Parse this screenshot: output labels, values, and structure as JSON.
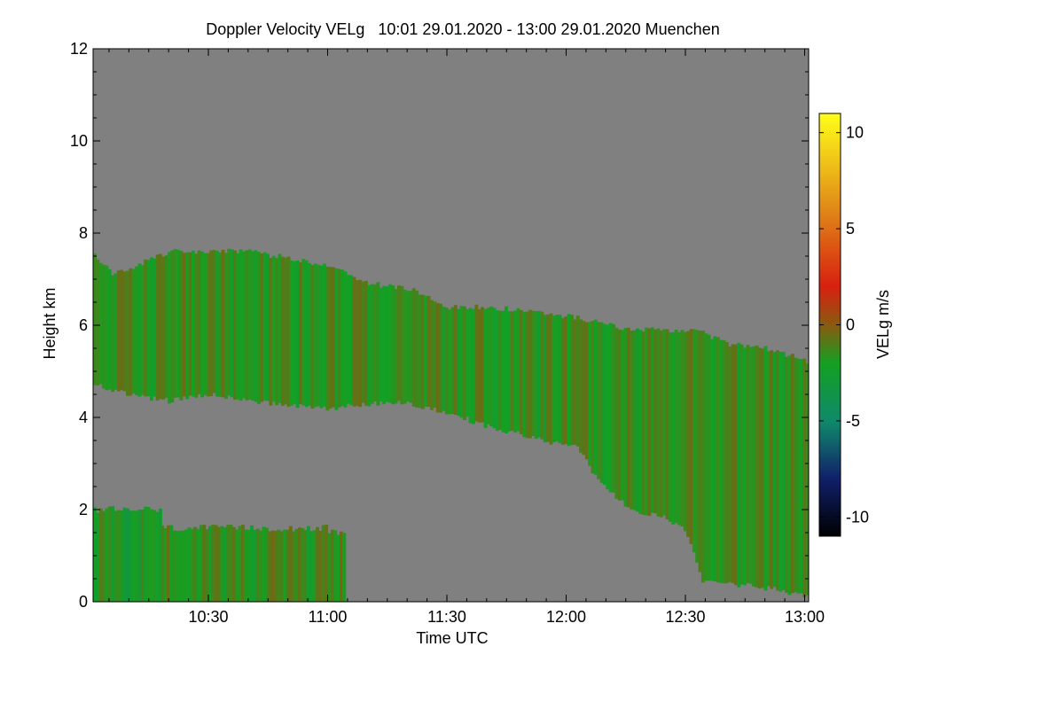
{
  "chart_data": {
    "type": "heatmap",
    "title": "Doppler Velocity VELg   10:01 29.01.2020 - 13:00 29.01.2020 Muenchen",
    "xlabel": "Time UTC",
    "ylabel": "Height km",
    "x_range_minutes": [
      601,
      781
    ],
    "x_ticks": [
      {
        "value": 630,
        "label": "10:30"
      },
      {
        "value": 660,
        "label": "11:00"
      },
      {
        "value": 690,
        "label": "11:30"
      },
      {
        "value": 720,
        "label": "12:00"
      },
      {
        "value": 750,
        "label": "12:30"
      },
      {
        "value": 780,
        "label": "13:00"
      }
    ],
    "y_range": [
      0,
      12
    ],
    "y_ticks": [
      {
        "value": 0,
        "label": "0"
      },
      {
        "value": 2,
        "label": "2"
      },
      {
        "value": 4,
        "label": "4"
      },
      {
        "value": 6,
        "label": "6"
      },
      {
        "value": 8,
        "label": "8"
      },
      {
        "value": 10,
        "label": "10"
      },
      {
        "value": 12,
        "label": "12"
      }
    ],
    "colorbar": {
      "label": "VELg m/s",
      "range": [
        -11,
        11
      ],
      "ticks": [
        {
          "value": 10,
          "label": "10"
        },
        {
          "value": 5,
          "label": "5"
        },
        {
          "value": 0,
          "label": "0"
        },
        {
          "value": -5,
          "label": "-5"
        },
        {
          "value": -10,
          "label": "-10"
        }
      ],
      "stops": [
        {
          "value": -11,
          "color": "#000000"
        },
        {
          "value": -8,
          "color": "#10206a"
        },
        {
          "value": -5,
          "color": "#0f8a6a"
        },
        {
          "value": -2,
          "color": "#14a022"
        },
        {
          "value": 0,
          "color": "#8a5a10"
        },
        {
          "value": 2,
          "color": "#d82010"
        },
        {
          "value": 6,
          "color": "#e08818"
        },
        {
          "value": 11,
          "color": "#ffff18"
        }
      ]
    },
    "no_data_color": "#808080",
    "upper_cloud_layer": {
      "top_km": [
        [
          601,
          7.5
        ],
        [
          606,
          7.1
        ],
        [
          620,
          7.6
        ],
        [
          640,
          7.6
        ],
        [
          660,
          7.3
        ],
        [
          670,
          6.9
        ],
        [
          680,
          6.8
        ],
        [
          690,
          6.4
        ],
        [
          700,
          6.4
        ],
        [
          710,
          6.3
        ],
        [
          720,
          6.2
        ],
        [
          726,
          6.1
        ],
        [
          735,
          5.9
        ],
        [
          745,
          5.9
        ],
        [
          752,
          5.9
        ],
        [
          760,
          5.6
        ],
        [
          770,
          5.5
        ],
        [
          781,
          5.2
        ]
      ],
      "base_km": [
        [
          601,
          4.7
        ],
        [
          610,
          4.5
        ],
        [
          620,
          4.35
        ],
        [
          630,
          4.5
        ],
        [
          640,
          4.35
        ],
        [
          660,
          4.2
        ],
        [
          670,
          4.3
        ],
        [
          680,
          4.3
        ],
        [
          690,
          4.1
        ],
        [
          700,
          3.8
        ],
        [
          710,
          3.6
        ],
        [
          716,
          3.45
        ],
        [
          722,
          3.4
        ],
        [
          728,
          2.6
        ],
        [
          736,
          2.0
        ],
        [
          745,
          1.8
        ],
        [
          750,
          1.5
        ],
        [
          754,
          0.4
        ],
        [
          760,
          0.4
        ],
        [
          770,
          0.3
        ],
        [
          781,
          0.1
        ]
      ],
      "mean_velocity_ms": -1.5
    },
    "boundary_layer": {
      "segments": [
        {
          "t0": 601,
          "t1": 618,
          "top_km": 2.0,
          "mean_velocity_ms": -2
        },
        {
          "t0": 618,
          "t1": 660,
          "top_km": 1.6,
          "mean_velocity_ms": -1.5
        },
        {
          "t0": 660,
          "t1": 664,
          "top_km": 1.5,
          "mean_velocity_ms": -1
        }
      ]
    }
  }
}
